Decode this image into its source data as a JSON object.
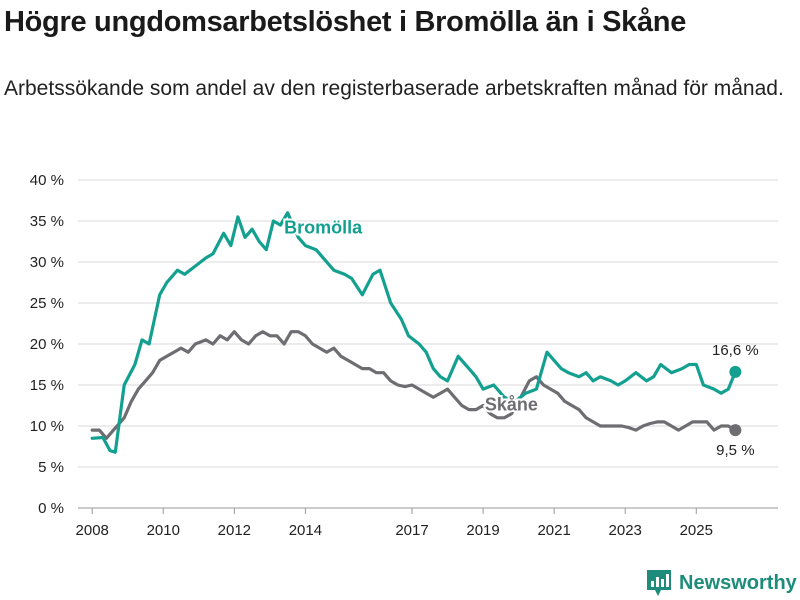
{
  "title": "Högre ungdomsarbetslöshet i Bromölla än i Skåne",
  "subtitle": "Arbetssökande som andel av den registerbaserade arbetskraften månad för månad.",
  "brand": "Newsworthy",
  "colors": {
    "bromolla": "#14a090",
    "skane": "#6d6d72",
    "grid": "#d9d9d9",
    "brand": "#1e8c7a"
  },
  "chart_data": {
    "type": "line",
    "title": "Högre ungdomsarbetslöshet i Bromölla än i Skåne",
    "xlabel": "",
    "ylabel": "",
    "ylim": [
      0,
      40
    ],
    "xlim": [
      2007.6,
      2027.3
    ],
    "y_ticks": [
      0,
      5,
      10,
      15,
      20,
      25,
      30,
      35,
      40
    ],
    "y_tick_labels": [
      "0 %",
      "5 %",
      "10 %",
      "15 %",
      "20 %",
      "25 %",
      "30 %",
      "35 %",
      "40 %"
    ],
    "x_ticks": [
      2008,
      2010,
      2012,
      2014,
      2017,
      2019,
      2021,
      2023,
      2025
    ],
    "x_tick_labels": [
      "2008",
      "2010",
      "2012",
      "2014",
      "2017",
      "2019",
      "2021",
      "2023",
      "2025"
    ],
    "grid": true,
    "series": [
      {
        "name": "Bromölla",
        "label": "Bromölla",
        "end_label": "16,6 %",
        "x": [
          2008.0,
          2008.3,
          2008.5,
          2008.65,
          2008.9,
          2009.2,
          2009.4,
          2009.6,
          2009.9,
          2010.1,
          2010.4,
          2010.6,
          2010.9,
          2011.2,
          2011.4,
          2011.7,
          2011.9,
          2012.1,
          2012.3,
          2012.5,
          2012.7,
          2012.9,
          2013.1,
          2013.3,
          2013.5,
          2013.8,
          2014.0,
          2014.3,
          2014.5,
          2014.8,
          2015.1,
          2015.3,
          2015.6,
          2015.9,
          2016.1,
          2016.4,
          2016.7,
          2016.9,
          2017.2,
          2017.4,
          2017.6,
          2017.8,
          2018.0,
          2018.3,
          2018.6,
          2018.8,
          2019.0,
          2019.3,
          2019.6,
          2019.9,
          2020.2,
          2020.5,
          2020.8,
          2021.0,
          2021.2,
          2021.4,
          2021.7,
          2021.9,
          2022.1,
          2022.3,
          2022.6,
          2022.8,
          2023.0,
          2023.3,
          2023.6,
          2023.8,
          2024.0,
          2024.3,
          2024.6,
          2024.8,
          2025.0,
          2025.2,
          2025.5,
          2025.7,
          2025.9,
          2026.1
        ],
        "values": [
          8.5,
          8.6,
          7.0,
          6.8,
          15.0,
          17.5,
          20.5,
          20.0,
          26.0,
          27.5,
          29.0,
          28.5,
          29.5,
          30.5,
          31.0,
          33.5,
          32.0,
          35.5,
          33.0,
          34.0,
          32.5,
          31.5,
          35.0,
          34.5,
          36.0,
          33.0,
          32.0,
          31.5,
          30.5,
          29.0,
          28.5,
          28.0,
          26.0,
          28.5,
          29.0,
          25.0,
          23.0,
          21.0,
          20.0,
          19.0,
          17.0,
          16.0,
          15.5,
          18.5,
          17.0,
          16.0,
          14.5,
          15.0,
          13.5,
          13.0,
          14.0,
          14.5,
          19.0,
          18.0,
          17.0,
          16.5,
          16.0,
          16.5,
          15.5,
          16.0,
          15.5,
          15.0,
          15.5,
          16.5,
          15.5,
          16.0,
          17.5,
          16.5,
          17.0,
          17.5,
          17.5,
          15.0,
          14.5,
          14.0,
          14.5,
          16.6
        ]
      },
      {
        "name": "Skåne",
        "label": "Skåne",
        "end_label": "9,5 %",
        "x": [
          2008.0,
          2008.2,
          2008.4,
          2008.6,
          2008.9,
          2009.1,
          2009.3,
          2009.5,
          2009.7,
          2009.9,
          2010.1,
          2010.3,
          2010.5,
          2010.7,
          2010.9,
          2011.2,
          2011.4,
          2011.6,
          2011.8,
          2012.0,
          2012.2,
          2012.4,
          2012.6,
          2012.8,
          2013.0,
          2013.2,
          2013.4,
          2013.6,
          2013.8,
          2014.0,
          2014.2,
          2014.4,
          2014.6,
          2014.8,
          2015.0,
          2015.2,
          2015.4,
          2015.6,
          2015.8,
          2016.0,
          2016.2,
          2016.4,
          2016.6,
          2016.8,
          2017.0,
          2017.2,
          2017.4,
          2017.6,
          2017.8,
          2018.0,
          2018.2,
          2018.4,
          2018.6,
          2018.8,
          2019.0,
          2019.2,
          2019.4,
          2019.6,
          2019.8,
          2020.0,
          2020.3,
          2020.5,
          2020.7,
          2020.9,
          2021.1,
          2021.3,
          2021.5,
          2021.7,
          2021.9,
          2022.1,
          2022.3,
          2022.5,
          2022.7,
          2022.9,
          2023.1,
          2023.3,
          2023.5,
          2023.7,
          2023.9,
          2024.1,
          2024.3,
          2024.5,
          2024.7,
          2024.9,
          2025.1,
          2025.3,
          2025.5,
          2025.7,
          2025.9,
          2026.1
        ],
        "values": [
          9.5,
          9.5,
          8.5,
          9.5,
          11.0,
          13.0,
          14.5,
          15.5,
          16.5,
          18.0,
          18.5,
          19.0,
          19.5,
          19.0,
          20.0,
          20.5,
          20.0,
          21.0,
          20.5,
          21.5,
          20.5,
          20.0,
          21.0,
          21.5,
          21.0,
          21.0,
          20.0,
          21.5,
          21.5,
          21.0,
          20.0,
          19.5,
          19.0,
          19.5,
          18.5,
          18.0,
          17.5,
          17.0,
          17.0,
          16.5,
          16.5,
          15.5,
          15.0,
          14.8,
          15.0,
          14.5,
          14.0,
          13.5,
          14.0,
          14.5,
          13.5,
          12.5,
          12.0,
          12.0,
          12.5,
          11.5,
          11.0,
          11.0,
          11.5,
          13.0,
          15.5,
          16.0,
          15.0,
          14.5,
          14.0,
          13.0,
          12.5,
          12.0,
          11.0,
          10.5,
          10.0,
          10.0,
          10.0,
          10.0,
          9.8,
          9.5,
          10.0,
          10.3,
          10.5,
          10.5,
          10.0,
          9.5,
          10.0,
          10.5,
          10.5,
          10.5,
          9.5,
          10.0,
          10.0,
          9.5
        ]
      }
    ]
  }
}
